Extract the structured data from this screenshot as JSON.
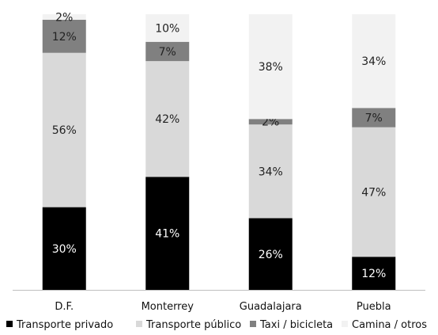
{
  "chart_data": {
    "type": "bar",
    "stacked": true,
    "percent_stacked": true,
    "categories": [
      "D.F.",
      "Monterrey",
      "Guadalajara",
      "Puebla"
    ],
    "series": [
      {
        "name": "Transporte privado",
        "color": "#000000",
        "label_color": "#ffffff",
        "values": [
          30,
          41,
          26,
          12
        ],
        "labels": [
          "30%",
          "41%",
          "26%",
          "12%"
        ]
      },
      {
        "name": "Transporte público",
        "color": "#d9d9d9",
        "label_color": "#222222",
        "values": [
          56,
          42,
          34,
          47
        ],
        "labels": [
          "56%",
          "42%",
          "34%",
          "47%"
        ]
      },
      {
        "name": "Taxi / bicicleta",
        "color": "#808080",
        "label_color": "#222222",
        "values": [
          12,
          7,
          2,
          7
        ],
        "labels": [
          "12%",
          "7%",
          "2%",
          "7%"
        ]
      },
      {
        "name": "Camina / otros",
        "color": "#f2f2f2",
        "label_color": "#222222",
        "values": [
          2,
          10,
          38,
          34
        ],
        "labels": [
          "2%",
          "10%",
          "38%",
          "34%"
        ]
      }
    ],
    "ylim": [
      0,
      100
    ],
    "legend_position": "bottom",
    "grid": false
  }
}
